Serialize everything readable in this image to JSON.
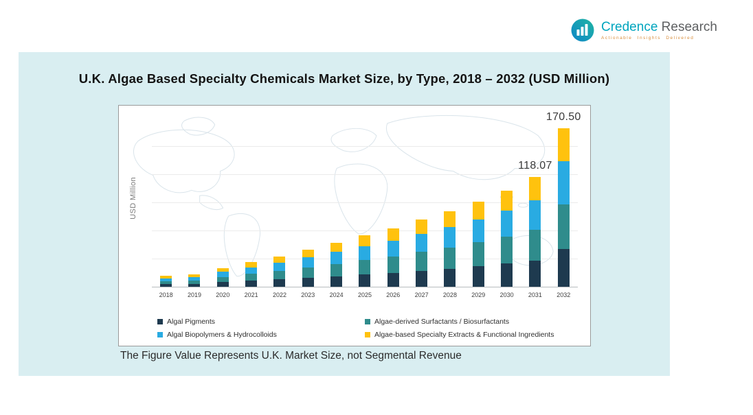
{
  "logo": {
    "brand_primary": "Credence",
    "brand_secondary": " Research",
    "tagline": "Actionable Insights Delivered",
    "icon": "bar-chart-circle-icon"
  },
  "panel": {
    "title": "U.K. Algae Based Specialty Chemicals Market Size, by Type, 2018 – 2032 (USD Million)",
    "footnote": "The Figure Value Represents U.K. Market Size, not Segmental Revenue"
  },
  "chart_data": {
    "type": "bar",
    "stacked": true,
    "title": "U.K. Algae Based Specialty Chemicals Market Size, by Type, 2018 – 2032 (USD Million)",
    "xlabel": "",
    "ylabel": "USD Million",
    "ylim": [
      0,
      180
    ],
    "y_ticks_visible": false,
    "grid": "horizontal",
    "legend_position": "bottom",
    "categories": [
      "2018",
      "2019",
      "2020",
      "2021",
      "2022",
      "2023",
      "2024",
      "2025",
      "2026",
      "2027",
      "2028",
      "2029",
      "2030",
      "2031",
      "2032"
    ],
    "series": [
      {
        "name": "Algal Pigments",
        "color": "#1E3A4F",
        "values": [
          2.76,
          3.17,
          4.82,
          6.34,
          7.8,
          9.65,
          11.35,
          13.3,
          15.12,
          17.3,
          19.56,
          22.03,
          24.86,
          28.34,
          40.92
        ]
      },
      {
        "name": "Algae-derived Surfactants / Biosurfactants",
        "color": "#2F8C8C",
        "values": [
          3.22,
          3.7,
          5.63,
          7.39,
          9.1,
          11.26,
          13.24,
          15.51,
          17.64,
          20.19,
          22.82,
          25.7,
          29.01,
          33.06,
          47.74
        ]
      },
      {
        "name": "Algal Biopolymers & Hydrocolloids",
        "color": "#29ABE2",
        "values": [
          3.11,
          3.56,
          5.43,
          7.13,
          8.78,
          10.85,
          12.77,
          14.96,
          17.01,
          19.47,
          22.01,
          24.79,
          27.97,
          31.88,
          46.04
        ]
      },
      {
        "name": "Algae-based Specialty Extracts & Functional Ingredients",
        "color": "#FFC20E",
        "values": [
          2.42,
          2.77,
          4.22,
          5.54,
          6.83,
          8.44,
          9.93,
          11.63,
          13.23,
          15.14,
          17.12,
          19.28,
          21.76,
          24.79,
          35.8
        ]
      }
    ],
    "annotations": [
      {
        "category": "2031",
        "label": "118.07"
      },
      {
        "category": "2032",
        "label": "170.50"
      }
    ],
    "totals_labeled": {
      "2031": 118.07,
      "2032": 170.5
    }
  }
}
